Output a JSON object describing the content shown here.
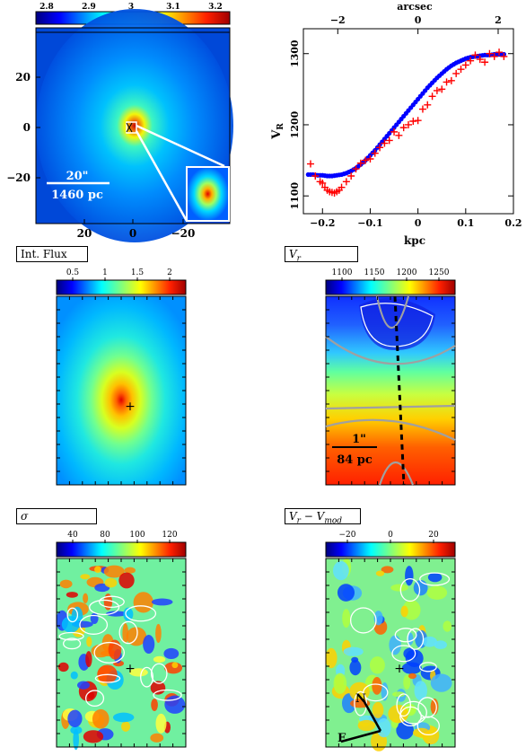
{
  "chart_data": [
    {
      "type": "heatmap",
      "title": "",
      "colorbar_ticks": [
        "2.8",
        "2.9",
        "3",
        "3.1",
        "3.2"
      ],
      "x_ticks": [
        "20",
        "0",
        "−20"
      ],
      "y_ticks": [
        "20",
        "0",
        "−20"
      ],
      "scale_bar_arcsec": "20\"",
      "scale_bar_pc": "1460 pc"
    },
    {
      "type": "scatter",
      "xlabel": "kpc",
      "ylabel": "V_R",
      "top_xlabel": "arcsec",
      "x_ticks": [
        "−0.2",
        "−0.1",
        "0",
        "0.1",
        "0.2"
      ],
      "top_ticks": [
        "−2",
        "0",
        "2"
      ],
      "y_ticks": [
        "1100",
        "1200",
        "1300"
      ],
      "xlim": [
        -0.24,
        0.2
      ],
      "ylim": [
        1075,
        1335
      ],
      "series": [
        {
          "marker": "plus",
          "color": "#ff0000",
          "x": [
            -0.225,
            -0.215,
            -0.205,
            -0.2,
            -0.195,
            -0.19,
            -0.185,
            -0.18,
            -0.175,
            -0.17,
            -0.165,
            -0.16,
            -0.15,
            -0.14,
            -0.13,
            -0.12,
            -0.11,
            -0.1,
            -0.09,
            -0.08,
            -0.07,
            -0.06,
            -0.05,
            -0.04,
            -0.03,
            -0.02,
            -0.01,
            0,
            0.01,
            0.02,
            0.03,
            0.04,
            0.05,
            0.06,
            0.07,
            0.08,
            0.09,
            0.1,
            0.11,
            0.12,
            0.13,
            0.14,
            0.15,
            0.16,
            0.17,
            0.18
          ],
          "y": [
            1145,
            1128,
            1120,
            1118,
            1112,
            1108,
            1106,
            1105,
            1104,
            1106,
            1108,
            1112,
            1120,
            1128,
            1138,
            1146,
            1150,
            1152,
            1160,
            1168,
            1174,
            1178,
            1190,
            1185,
            1196,
            1200,
            1205,
            1206,
            1222,
            1228,
            1240,
            1248,
            1250,
            1260,
            1262,
            1272,
            1278,
            1284,
            1290,
            1298,
            1292,
            1288,
            1300,
            1296,
            1302,
            1296
          ]
        },
        {
          "marker": "dot",
          "color": "#0000ff",
          "x": [
            -0.23,
            -0.22,
            -0.21,
            -0.2,
            -0.19,
            -0.18,
            -0.17,
            -0.16,
            -0.15,
            -0.14,
            -0.13,
            -0.12,
            -0.11,
            -0.1,
            -0.09,
            -0.08,
            -0.07,
            -0.06,
            -0.05,
            -0.04,
            -0.03,
            -0.02,
            -0.01,
            0,
            0.01,
            0.02,
            0.03,
            0.04,
            0.05,
            0.06,
            0.07,
            0.08,
            0.09,
            0.1,
            0.11,
            0.12,
            0.13,
            0.14,
            0.15,
            0.16,
            0.17,
            0.18
          ],
          "y": [
            1130,
            1130,
            1129,
            1129,
            1128,
            1128,
            1129,
            1130,
            1132,
            1135,
            1139,
            1144,
            1150,
            1157,
            1164,
            1172,
            1180,
            1188,
            1196,
            1204,
            1212,
            1220,
            1228,
            1236,
            1244,
            1252,
            1259,
            1266,
            1272,
            1278,
            1283,
            1287,
            1290,
            1293,
            1295,
            1296,
            1297,
            1298,
            1298,
            1299,
            1299,
            1299
          ]
        }
      ]
    },
    {
      "type": "heatmap",
      "title": "Int. Flux",
      "colorbar_ticks": [
        "0.5",
        "1",
        "1.5",
        "2"
      ]
    },
    {
      "type": "heatmap",
      "title": "V_r",
      "colorbar_ticks": [
        "1100",
        "1150",
        "1200",
        "1250"
      ],
      "scale_bar_arcsec": "1\"",
      "scale_bar_pc": "84 pc"
    },
    {
      "type": "heatmap",
      "title": "σ",
      "colorbar_ticks": [
        "40",
        "80",
        "100",
        "120"
      ]
    },
    {
      "type": "heatmap",
      "title": "V_r − V_mod",
      "colorbar_ticks": [
        "−20",
        "0",
        "20"
      ],
      "compass": [
        "N",
        "E"
      ]
    }
  ],
  "labels": {
    "flux_title": "Int. Flux",
    "vr_base": "V",
    "vr_sub": "r",
    "sigma": "σ",
    "res_v1": "V",
    "res_sub1": "r",
    "res_minus": " − V",
    "res_sub2": "mod",
    "vr_axis_base": "V",
    "vr_axis_sub": "R",
    "top_axis": "arcsec",
    "bottom_axis": "kpc",
    "compass_n": "N",
    "compass_e": "E"
  }
}
